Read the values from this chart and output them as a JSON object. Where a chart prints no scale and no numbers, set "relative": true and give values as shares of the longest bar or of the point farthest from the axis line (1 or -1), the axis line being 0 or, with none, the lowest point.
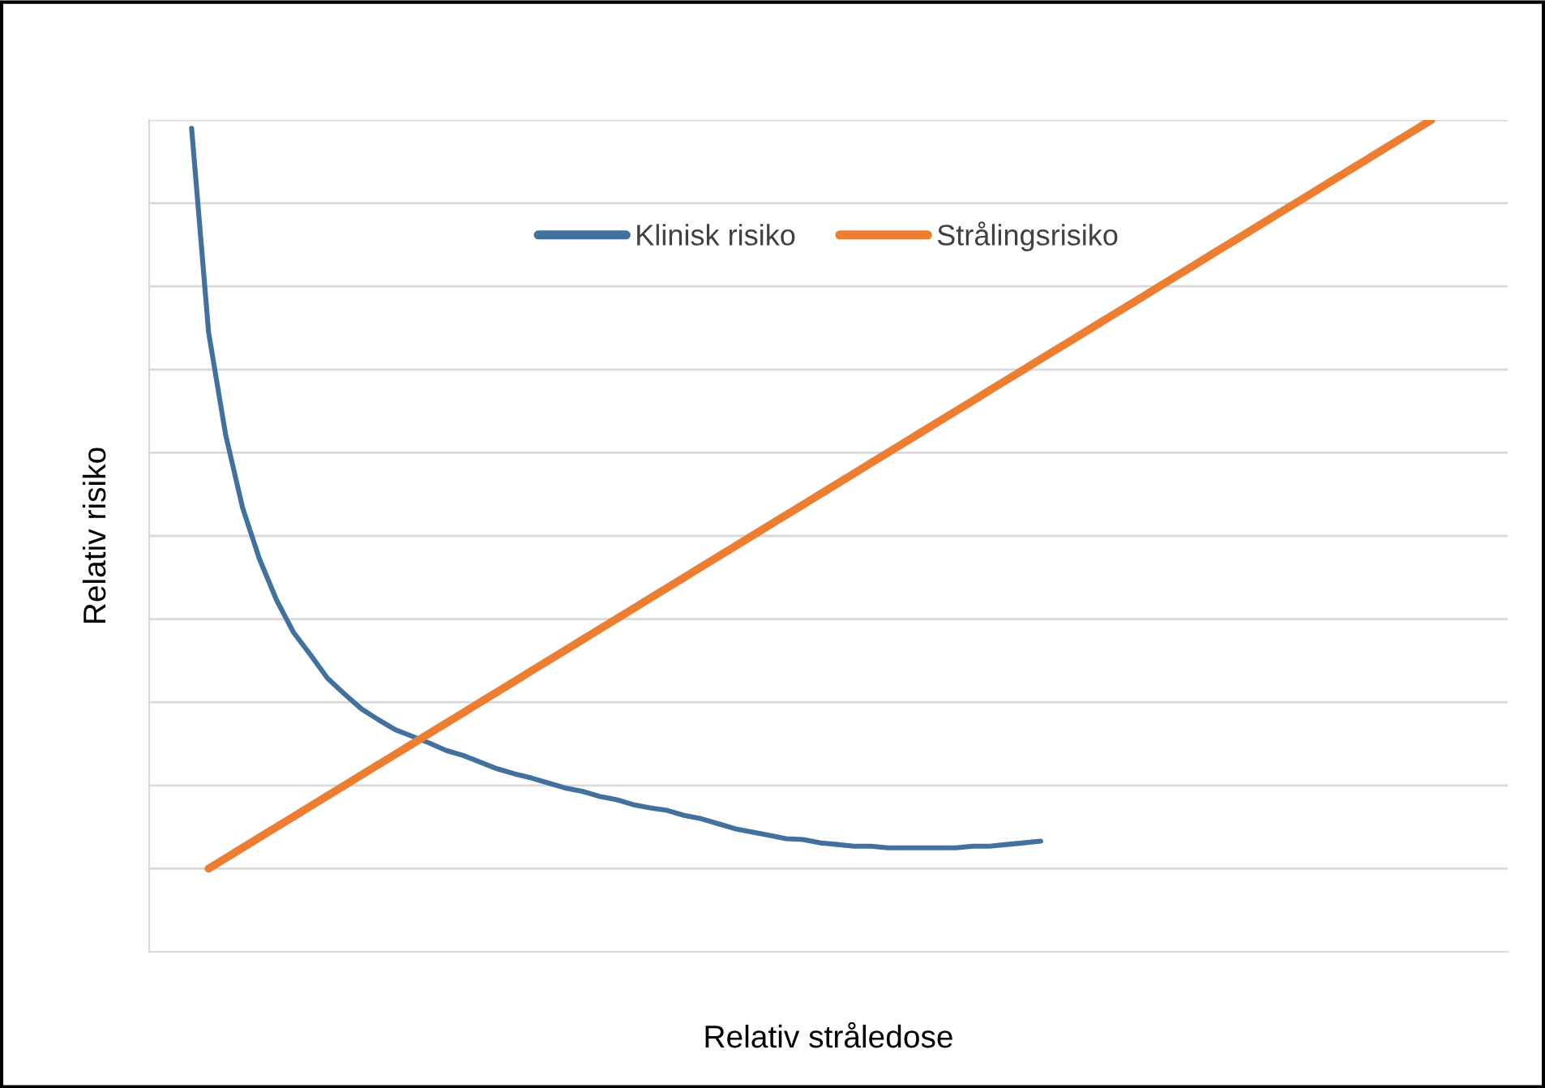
{
  "chart_data": {
    "type": "line",
    "relative": true,
    "xlabel": "Relativ stråledose",
    "ylabel": "Relativ risiko",
    "grid": "y",
    "legend": "top",
    "line_style": "solid",
    "marker": "none",
    "categories": [
      null,
      null,
      null,
      null,
      null,
      null,
      null,
      null,
      null,
      null,
      null,
      null,
      null,
      null,
      null,
      null,
      null,
      null,
      null,
      null,
      null,
      null,
      null,
      null,
      null,
      null,
      null,
      null,
      null,
      null,
      null,
      null,
      null,
      null,
      null,
      null,
      null,
      null,
      null,
      null,
      null,
      null,
      null,
      null,
      null,
      null,
      null,
      null,
      null,
      null,
      null,
      null,
      null,
      null,
      null,
      null,
      null,
      null,
      null,
      null,
      null,
      null,
      null,
      null,
      null,
      null,
      null,
      null,
      null,
      null,
      null,
      null,
      null,
      null,
      null,
      null,
      null,
      null,
      null,
      null
    ],
    "series": [
      {
        "name": "Klinisk risiko",
        "color": "#41719c",
        "values": [
          null,
          null,
          0.99,
          0.745,
          0.622,
          0.534,
          0.472,
          0.423,
          0.384,
          0.357,
          0.329,
          0.31,
          0.292,
          0.279,
          0.267,
          0.259,
          0.251,
          0.242,
          0.236,
          0.228,
          0.22,
          0.214,
          0.209,
          0.203,
          0.197,
          0.193,
          0.187,
          0.183,
          0.177,
          0.173,
          0.17,
          0.164,
          0.16,
          0.154,
          0.148,
          0.144,
          0.14,
          0.136,
          0.135,
          0.131,
          0.129,
          0.127,
          0.127,
          0.125,
          0.125,
          0.125,
          0.125,
          0.125,
          0.127,
          0.127,
          0.129,
          0.131,
          0.133,
          null,
          null,
          null,
          null,
          null,
          null,
          null,
          null,
          null,
          null,
          null,
          null,
          null,
          null,
          null,
          null,
          null,
          null,
          null,
          null,
          null,
          null,
          null,
          null,
          null,
          null,
          null
        ]
      },
      {
        "name": "Strålingsrisiko",
        "color": "#ed7d31",
        "values": [
          null,
          null,
          null,
          0.1,
          0.1125,
          0.125,
          0.1375,
          0.15,
          0.1625,
          0.175,
          0.1875,
          0.2,
          0.2125,
          0.225,
          0.2375,
          0.25,
          0.2625,
          0.275,
          0.2875,
          0.3,
          0.3125,
          0.325,
          0.3375,
          0.35,
          0.3625,
          0.375,
          0.3875,
          0.4,
          0.4125,
          0.425,
          0.4375,
          0.45,
          0.4625,
          0.475,
          0.4875,
          0.5,
          0.5125,
          0.525,
          0.5375,
          0.55,
          0.5625,
          0.575,
          0.5875,
          0.6,
          0.6125,
          0.625,
          0.6375,
          0.65,
          0.6625,
          0.675,
          0.6875,
          0.7,
          0.7125,
          0.725,
          0.7375,
          0.75,
          0.7625,
          0.775,
          0.7875,
          0.8,
          0.8125,
          0.825,
          0.8375,
          0.85,
          0.8625,
          0.875,
          0.8875,
          0.9,
          0.9125,
          0.925,
          0.9375,
          0.95,
          0.9625,
          0.975,
          0.9875,
          1.0,
          null,
          null,
          null,
          null
        ]
      }
    ]
  }
}
